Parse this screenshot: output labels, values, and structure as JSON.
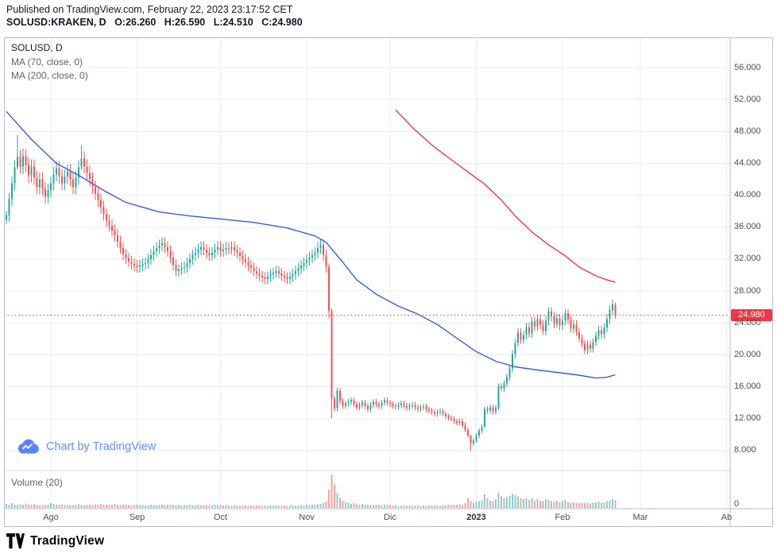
{
  "header": {
    "published": "Published on TradingView.com, February 22, 2023 23:17:52 CET",
    "symbol": "SOLUSD:KRAKEN, D",
    "ohlc": {
      "o": "O:26.260",
      "h": "H:26.590",
      "l": "L:24.510",
      "c": "C:24.980"
    }
  },
  "legend": {
    "title": "SOLUSD, D",
    "ma70_label": "MA (70, close, 0)",
    "ma200_label": "MA (200, close, 0)"
  },
  "watermark": {
    "label": "Chart by TradingView"
  },
  "volume_pane": {
    "label": "Volume (20)",
    "zero_label": "0"
  },
  "price_scale": {
    "last_price_label": "24.980"
  },
  "footer": {
    "brand": "TradingView"
  },
  "colors": {
    "up": "#26a69a",
    "down": "#ef5350",
    "vol_up": "rgba(38,166,154,0.55)",
    "vol_down": "rgba(239,83,80,0.55)",
    "ma70": "#3a5dd9",
    "ma200": "#f23645",
    "last": "#f23645",
    "grid": "#e9ecf2",
    "separator": "#d4d8e0",
    "axis_border": "#b7bcc8"
  },
  "chart_data": {
    "type": "candlestick",
    "symbol": "SOLUSD",
    "exchange": "KRAKEN",
    "interval": "D",
    "last": {
      "open": 26.26,
      "high": 26.59,
      "low": 24.51,
      "close": 24.98
    },
    "y_axis": {
      "ticks": [
        {
          "value": 56,
          "label": "56.000"
        },
        {
          "value": 52,
          "label": "52.000"
        },
        {
          "value": 48,
          "label": "48.000"
        },
        {
          "value": 44,
          "label": "44.000"
        },
        {
          "value": 40,
          "label": "40.000"
        },
        {
          "value": 36,
          "label": "36.000"
        },
        {
          "value": 32,
          "label": "32.000"
        },
        {
          "value": 28,
          "label": "28.000"
        },
        {
          "value": 24,
          "label": "24.000"
        },
        {
          "value": 20,
          "label": "20.000"
        },
        {
          "value": 16,
          "label": "16.000"
        },
        {
          "value": 12,
          "label": "12.000"
        },
        {
          "value": 8,
          "label": "8.000"
        }
      ]
    },
    "x_axis": {
      "ticks": [
        {
          "label": "Ago",
          "i": 16
        },
        {
          "label": "Sep",
          "i": 47
        },
        {
          "label": "Oct",
          "i": 77
        },
        {
          "label": "Nov",
          "i": 108
        },
        {
          "label": "Dic",
          "i": 138
        },
        {
          "label": "2023",
          "i": 169,
          "bold": true
        },
        {
          "label": "Feb",
          "i": 200
        },
        {
          "label": "Mar",
          "i": 228
        },
        {
          "label": "Ab",
          "i": 259
        }
      ]
    },
    "closes": [
      37.5,
      39.5,
      41.5,
      43.5,
      44.8,
      43.6,
      44.9,
      43.8,
      42.5,
      43.6,
      42.2,
      41.0,
      42.0,
      40.8,
      39.8,
      40.6,
      41.5,
      42.6,
      43.4,
      42.4,
      41.5,
      42.3,
      43.0,
      42.0,
      41.0,
      42.2,
      43.5,
      44.6,
      43.6,
      42.8,
      42.0,
      41.0,
      40.2,
      39.4,
      38.5,
      37.6,
      36.8,
      36.2,
      35.6,
      35.0,
      34.2,
      33.4,
      32.6,
      32.1,
      31.7,
      31.4,
      31.2,
      31.0,
      31.2,
      31.4,
      31.5,
      32.0,
      32.5,
      33.0,
      33.4,
      33.7,
      34.0,
      33.5,
      33.0,
      32.2,
      31.3,
      30.5,
      30.7,
      30.9,
      31.0,
      31.5,
      32.0,
      32.5,
      32.8,
      33.2,
      33.5,
      33.2,
      32.8,
      32.5,
      32.8,
      33.2,
      33.5,
      33.0,
      33.2,
      33.4,
      33.3,
      33.5,
      33.1,
      32.8,
      32.4,
      32.0,
      31.6,
      31.2,
      30.9,
      30.5,
      30.2,
      29.9,
      29.7,
      29.5,
      29.8,
      30.1,
      30.3,
      30.5,
      30.2,
      29.9,
      29.7,
      29.5,
      29.8,
      30.1,
      30.5,
      30.8,
      31.2,
      31.5,
      31.9,
      32.2,
      32.5,
      32.8,
      33.4,
      33.8,
      32.5,
      31.0,
      25.5,
      14.5,
      13.3,
      15.5,
      14.2,
      13.6,
      13.9,
      14.1,
      14.3,
      13.8,
      13.4,
      13.7,
      14.0,
      13.6,
      13.2,
      13.7,
      14.1,
      13.8,
      13.6,
      14.0,
      14.3,
      14.0,
      13.8,
      13.6,
      13.5,
      13.7,
      13.9,
      13.6,
      13.4,
      13.6,
      13.7,
      13.4,
      13.2,
      13.4,
      13.5,
      13.2,
      13.0,
      12.8,
      12.6,
      12.8,
      12.9,
      12.6,
      12.3,
      12.1,
      12.0,
      11.7,
      11.5,
      11.7,
      11.2,
      10.6,
      9.9,
      8.9,
      9.3,
      9.9,
      10.5,
      11.0,
      13.2,
      13.0,
      13.4,
      12.9,
      13.3,
      16.1,
      15.8,
      16.4,
      17.2,
      18.3,
      20.1,
      21.5,
      22.8,
      21.9,
      22.5,
      23.5,
      22.7,
      24.2,
      23.6,
      24.5,
      23.8,
      23.0,
      24.3,
      25.4,
      24.8,
      23.9,
      24.6,
      23.7,
      24.3,
      25.2,
      24.4,
      23.3,
      23.8,
      22.9,
      22.1,
      21.4,
      20.6,
      21.3,
      20.8,
      21.6,
      22.4,
      23.1,
      22.6,
      23.4,
      24.5,
      25.6,
      26.3,
      24.98
    ],
    "overrides": {
      "0": [
        36.9,
        38.0,
        36.4,
        37.5
      ],
      "4": [
        43.5,
        47.6,
        43.2,
        44.8
      ],
      "27": [
        43.5,
        46.2,
        43.2,
        44.6
      ],
      "116": [
        31.0,
        31.4,
        24.6,
        25.5
      ],
      "117": [
        25.5,
        25.8,
        12.1,
        14.5
      ],
      "167": [
        9.9,
        10.0,
        8.0,
        8.9
      ],
      "172": [
        11.0,
        13.5,
        10.9,
        13.2
      ],
      "177": [
        13.3,
        16.4,
        13.1,
        16.1
      ],
      "219": [
        26.26,
        26.59,
        24.51,
        24.98
      ]
    },
    "volumes": [
      12,
      9,
      14,
      10,
      8,
      11,
      9,
      13,
      10,
      8,
      12,
      9,
      7,
      10,
      8,
      9,
      14,
      12,
      10,
      9,
      11,
      8,
      10,
      9,
      8,
      10,
      12,
      9,
      8,
      10,
      9,
      8,
      11,
      9,
      12,
      10,
      9,
      8,
      10,
      12,
      9,
      8,
      9,
      10,
      8,
      7,
      9,
      10,
      8,
      9,
      7,
      8,
      10,
      9,
      8,
      10,
      9,
      8,
      10,
      9,
      8,
      7,
      9,
      8,
      7,
      8,
      9,
      8,
      7,
      9,
      8,
      10,
      8,
      7,
      8,
      9,
      8,
      9,
      7,
      8,
      7,
      6,
      8,
      7,
      6,
      7,
      8,
      6,
      7,
      6,
      7,
      8,
      6,
      7,
      6,
      7,
      6,
      8,
      7,
      6,
      7,
      6,
      7,
      8,
      6,
      7,
      8,
      7,
      9,
      8,
      10,
      9,
      11,
      12,
      14,
      20,
      55,
      100,
      70,
      45,
      30,
      22,
      18,
      15,
      12,
      14,
      11,
      10,
      12,
      9,
      10,
      9,
      8,
      10,
      9,
      8,
      9,
      8,
      8,
      7,
      8,
      6,
      7,
      8,
      6,
      7,
      6,
      7,
      8,
      6,
      7,
      6,
      7,
      6,
      8,
      7,
      6,
      8,
      7,
      9,
      8,
      10,
      9,
      11,
      10,
      14,
      30,
      22,
      15,
      18,
      20,
      24,
      40,
      28,
      22,
      20,
      26,
      45,
      35,
      30,
      32,
      36,
      42,
      38,
      34,
      28,
      26,
      30,
      24,
      28,
      22,
      26,
      20,
      22,
      26,
      24,
      20,
      18,
      22,
      18,
      20,
      24,
      18,
      16,
      18,
      15,
      14,
      16,
      14,
      15,
      13,
      15,
      17,
      19,
      15,
      17,
      20,
      22,
      26,
      24
    ],
    "ma70_points": [
      [
        0,
        50.5
      ],
      [
        9,
        47.0
      ],
      [
        18,
        44.0
      ],
      [
        26,
        42.5
      ],
      [
        35,
        40.6
      ],
      [
        43,
        39.1
      ],
      [
        55,
        37.9
      ],
      [
        66,
        37.4
      ],
      [
        78,
        37.0
      ],
      [
        89,
        36.6
      ],
      [
        101,
        35.9
      ],
      [
        111,
        34.9
      ],
      [
        115,
        34.1
      ],
      [
        121,
        31.6
      ],
      [
        126,
        29.4
      ],
      [
        133,
        27.6
      ],
      [
        141,
        26.1
      ],
      [
        148,
        25.1
      ],
      [
        155,
        23.8
      ],
      [
        162,
        22.1
      ],
      [
        169,
        20.4
      ],
      [
        176,
        19.2
      ],
      [
        183,
        18.5
      ],
      [
        191,
        18.1
      ],
      [
        198,
        17.8
      ],
      [
        205,
        17.5
      ],
      [
        212,
        17.1
      ],
      [
        216,
        17.2
      ],
      [
        219,
        17.5
      ]
    ],
    "ma200_points": [
      [
        140,
        50.7
      ],
      [
        146,
        48.5
      ],
      [
        153,
        46.3
      ],
      [
        161,
        44.2
      ],
      [
        168,
        42.4
      ],
      [
        172,
        41.4
      ],
      [
        178,
        39.4
      ],
      [
        183,
        37.4
      ],
      [
        189,
        35.4
      ],
      [
        195,
        33.8
      ],
      [
        201,
        32.4
      ],
      [
        206,
        31.0
      ],
      [
        212,
        29.9
      ],
      [
        216,
        29.4
      ],
      [
        219,
        29.1
      ]
    ]
  }
}
